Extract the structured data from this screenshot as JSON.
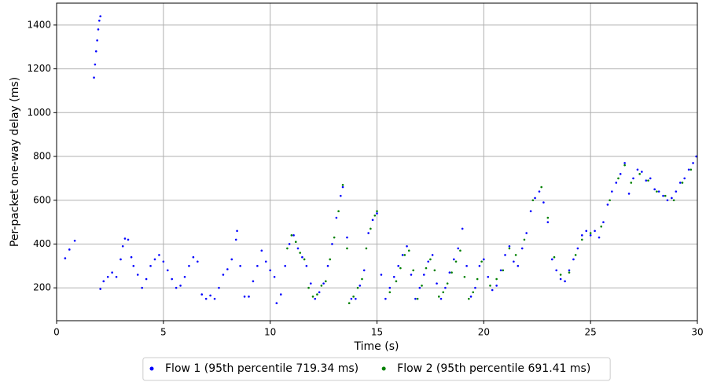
{
  "chart_data": {
    "type": "scatter",
    "xlabel": "Time (s)",
    "ylabel": "Per-packet one-way delay (ms)",
    "xlim": [
      0,
      30
    ],
    "ylim": [
      50,
      1500
    ],
    "xticks": [
      0,
      5,
      10,
      15,
      20,
      25,
      30
    ],
    "yticks": [
      200,
      400,
      600,
      800,
      1000,
      1200,
      1400
    ],
    "grid": true,
    "legend": "bottom",
    "series": [
      {
        "name": "Flow 1 (95th percentile 719.34 ms)",
        "color": "#0000ff",
        "x": [
          0.4,
          0.6,
          0.85,
          1.75,
          1.8,
          1.85,
          1.9,
          1.95,
          2.0,
          2.05,
          2.05,
          2.2,
          2.4,
          2.6,
          2.8,
          3.0,
          3.1,
          3.2,
          3.35,
          3.5,
          3.6,
          3.8,
          4.0,
          4.2,
          4.4,
          4.6,
          4.8,
          5.0,
          5.2,
          5.4,
          5.6,
          5.8,
          6.0,
          6.2,
          6.4,
          6.6,
          6.8,
          7.0,
          7.2,
          7.4,
          7.6,
          7.8,
          8.0,
          8.2,
          8.4,
          8.45,
          8.6,
          8.8,
          9.0,
          9.2,
          9.4,
          9.6,
          9.8,
          10.0,
          10.2,
          10.3,
          10.5,
          10.7,
          10.9,
          11.1,
          11.3,
          11.5,
          11.7,
          11.9,
          12.1,
          12.3,
          12.5,
          12.7,
          12.9,
          13.1,
          13.3,
          13.4,
          13.6,
          13.8,
          14.0,
          14.2,
          14.4,
          14.6,
          14.8,
          15.0,
          15.2,
          15.4,
          15.6,
          15.8,
          16.0,
          16.2,
          16.4,
          16.6,
          16.8,
          17.0,
          17.2,
          17.4,
          17.6,
          17.8,
          18.0,
          18.2,
          18.4,
          18.6,
          18.8,
          19.0,
          19.2,
          19.4,
          19.6,
          19.8,
          20.0,
          20.2,
          20.4,
          20.6,
          20.8,
          21.0,
          21.2,
          21.4,
          21.6,
          21.8,
          22.0,
          22.2,
          22.4,
          22.6,
          22.8,
          23.0,
          23.2,
          23.4,
          23.6,
          23.8,
          24.0,
          24.2,
          24.4,
          24.6,
          24.8,
          25.0,
          25.2,
          25.4,
          25.6,
          25.8,
          26.0,
          26.2,
          26.4,
          26.6,
          26.8,
          27.0,
          27.2,
          27.4,
          27.6,
          27.8,
          28.0,
          28.2,
          28.4,
          28.6,
          28.8,
          29.0,
          29.2,
          29.4,
          29.6,
          29.8,
          29.95
        ],
        "values": [
          335,
          375,
          415,
          1160,
          1220,
          1280,
          1330,
          1380,
          1420,
          1440,
          195,
          230,
          250,
          270,
          250,
          330,
          390,
          425,
          420,
          340,
          300,
          260,
          200,
          240,
          300,
          330,
          350,
          320,
          280,
          240,
          200,
          210,
          250,
          300,
          340,
          320,
          170,
          150,
          165,
          150,
          200,
          260,
          285,
          330,
          420,
          460,
          300,
          160,
          160,
          230,
          300,
          370,
          320,
          280,
          250,
          130,
          170,
          300,
          400,
          440,
          380,
          340,
          300,
          220,
          150,
          180,
          220,
          300,
          400,
          520,
          620,
          660,
          430,
          150,
          150,
          210,
          280,
          450,
          510,
          540,
          260,
          150,
          200,
          250,
          300,
          350,
          390,
          260,
          150,
          200,
          260,
          320,
          350,
          220,
          150,
          200,
          270,
          330,
          380,
          470,
          300,
          160,
          200,
          300,
          330,
          250,
          190,
          210,
          280,
          350,
          390,
          320,
          300,
          380,
          450,
          550,
          610,
          640,
          590,
          500,
          330,
          280,
          240,
          230,
          280,
          330,
          380,
          440,
          460,
          440,
          460,
          430,
          500,
          580,
          640,
          680,
          720,
          770,
          630,
          700,
          740,
          730,
          690,
          700,
          650,
          640,
          620,
          600,
          610,
          640,
          680,
          700,
          740,
          770,
          800
        ]
      },
      {
        "name": "Flow 2 (95th percentile 691.41 ms)",
        "color": "#008000",
        "x": [
          10.8,
          11.0,
          11.2,
          11.4,
          11.6,
          11.8,
          12.0,
          12.2,
          12.4,
          12.6,
          12.8,
          13.0,
          13.2,
          13.4,
          13.6,
          13.7,
          13.9,
          14.1,
          14.3,
          14.5,
          14.7,
          14.9,
          15.0,
          15.6,
          15.9,
          16.1,
          16.3,
          16.5,
          16.7,
          16.9,
          17.1,
          17.3,
          17.5,
          17.7,
          17.9,
          18.1,
          18.3,
          18.5,
          18.7,
          18.9,
          19.1,
          19.3,
          19.5,
          19.7,
          19.9,
          20.3,
          20.6,
          20.9,
          21.2,
          21.5,
          21.9,
          22.3,
          22.7,
          23.0,
          23.3,
          23.6,
          24.0,
          24.3,
          24.6,
          25.0,
          25.5,
          25.9,
          26.3,
          26.6,
          26.9,
          27.3,
          27.7,
          28.1,
          28.5,
          28.9,
          29.3,
          29.7
        ],
        "values": [
          380,
          440,
          410,
          360,
          330,
          200,
          160,
          170,
          210,
          230,
          330,
          430,
          550,
          670,
          380,
          130,
          160,
          200,
          240,
          380,
          470,
          530,
          550,
          180,
          230,
          290,
          350,
          370,
          280,
          150,
          210,
          290,
          330,
          280,
          160,
          180,
          220,
          270,
          320,
          370,
          250,
          150,
          180,
          240,
          320,
          210,
          240,
          280,
          380,
          350,
          420,
          600,
          660,
          520,
          340,
          260,
          270,
          350,
          420,
          450,
          480,
          600,
          700,
          760,
          680,
          720,
          690,
          640,
          620,
          600,
          680,
          740
        ]
      }
    ]
  }
}
